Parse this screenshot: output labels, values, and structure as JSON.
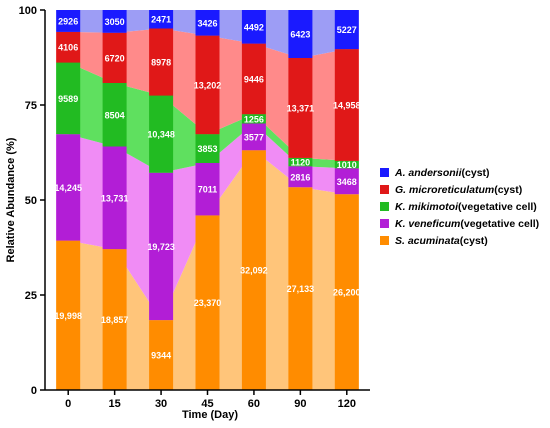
{
  "chart_data": {
    "type": "area",
    "title": "",
    "xlabel": "Time (Day)",
    "ylabel": "Relative Abundance (%)",
    "categories": [
      "0",
      "15",
      "30",
      "45",
      "60",
      "90",
      "120"
    ],
    "ylim": [
      0,
      100
    ],
    "yticks": [
      0,
      25,
      50,
      75,
      100
    ],
    "legend_position": "right",
    "series": [
      {
        "name": "S. acuminata(cyst)",
        "species": "S. acuminata",
        "suffix": "(cyst)",
        "color": "#ff8c00",
        "light_color": "#ffc57a",
        "counts": [
          19998,
          18857,
          9344,
          23370,
          32092,
          27133,
          26200
        ],
        "count_labels": [
          "19,998",
          "18,857",
          "9344",
          "23,370",
          "32,092",
          "27,133",
          "26,200"
        ]
      },
      {
        "name": "K. veneficum(vegetative cell)",
        "species": "K. veneficum",
        "suffix": "(vegetative cell)",
        "color": "#b21ed6",
        "light_color": "#f08cf5",
        "counts": [
          14245,
          13731,
          19723,
          7011,
          3577,
          2816,
          3468
        ],
        "count_labels": [
          "14,245",
          "13,731",
          "19,723",
          "7011",
          "3577",
          "2816",
          "3468"
        ]
      },
      {
        "name": "K. mikimotoi(vegetative cell)",
        "species": "K. mikimotoi",
        "suffix": "(vegetative cell)",
        "color": "#22bb22",
        "light_color": "#5fe05f",
        "counts": [
          9589,
          8504,
          10348,
          3853,
          1256,
          1120,
          1010
        ],
        "count_labels": [
          "9589",
          "8504",
          "10,348",
          "3853",
          "1256",
          "1120",
          "1010"
        ]
      },
      {
        "name": "G. microreticulatum(cyst)",
        "species": "G. microreticulatum",
        "suffix": "(cyst)",
        "color": "#e01818",
        "light_color": "#ff8a8a",
        "counts": [
          4106,
          6720,
          8978,
          13202,
          9446,
          13371,
          14958
        ],
        "count_labels": [
          "4106",
          "6720",
          "8978",
          "13,202",
          "9446",
          "13,371",
          "14,958"
        ]
      },
      {
        "name": "A. andersonii(cyst)",
        "species": "A. andersonii",
        "suffix": "(cyst)",
        "color": "#1a1aff",
        "light_color": "#9d9df5",
        "counts": [
          2926,
          3050,
          2471,
          3426,
          4492,
          6423,
          5227
        ],
        "count_labels": [
          "2926",
          "3050",
          "2471",
          "3426",
          "4492",
          "6423",
          "5227"
        ]
      }
    ]
  }
}
